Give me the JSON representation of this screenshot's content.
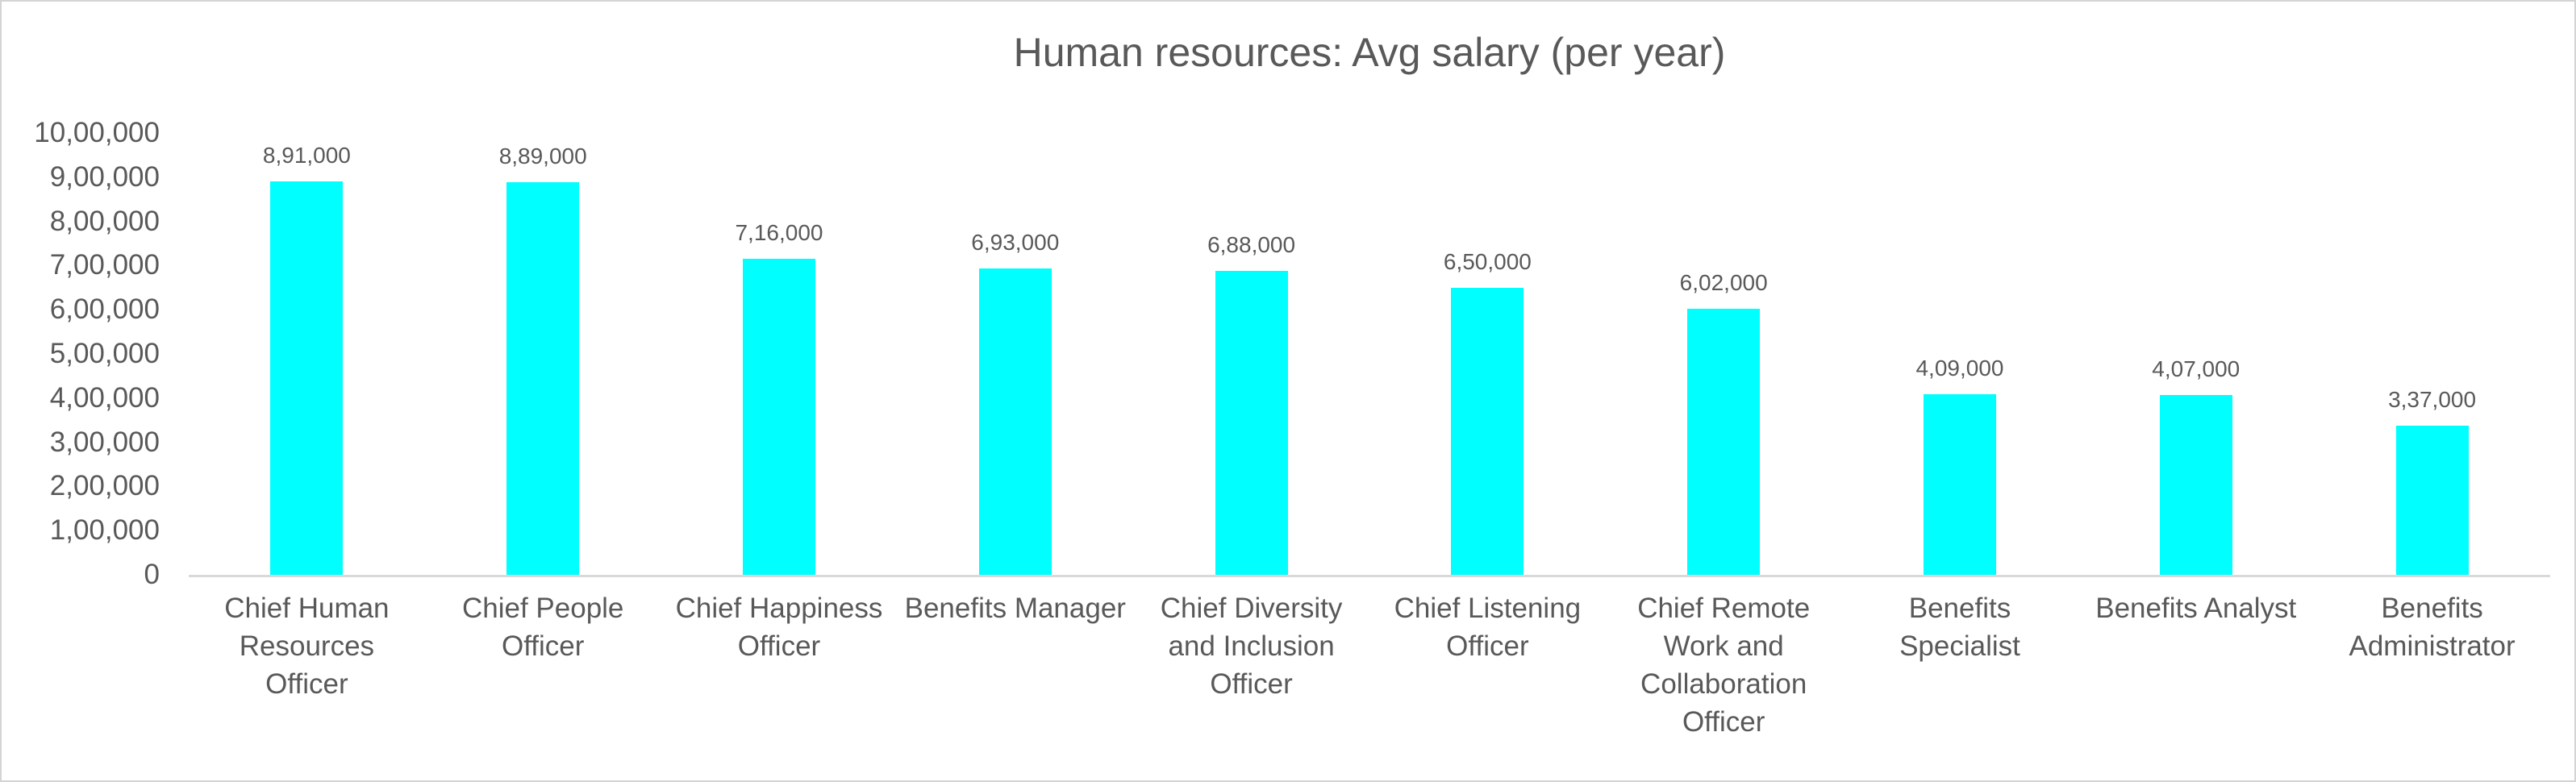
{
  "chart_data": {
    "type": "bar",
    "title": "Human resources: Avg salary (per year)",
    "categories": [
      "Chief Human Resources Officer",
      "Chief People Officer",
      "Chief Happiness Officer",
      "Benefits Manager",
      "Chief Diversity and Inclusion Officer",
      "Chief Listening Officer",
      "Chief Remote Work and Collaboration Officer",
      "Benefits Specialist",
      "Benefits Analyst",
      "Benefits Administrator"
    ],
    "category_lines": [
      [
        "Chief Human",
        "Resources",
        "Officer"
      ],
      [
        "Chief People",
        "Officer"
      ],
      [
        "Chief Happiness",
        "Officer"
      ],
      [
        "Benefits Manager"
      ],
      [
        "Chief Diversity",
        "and Inclusion",
        "Officer"
      ],
      [
        "Chief Listening",
        "Officer"
      ],
      [
        "Chief Remote",
        "Work and",
        "Collaboration",
        "Officer"
      ],
      [
        "Benefits",
        "Specialist"
      ],
      [
        "Benefits Analyst"
      ],
      [
        "Benefits",
        "Administrator"
      ]
    ],
    "values": [
      891000,
      889000,
      716000,
      693000,
      688000,
      650000,
      602000,
      409000,
      407000,
      337000
    ],
    "data_labels": [
      "8,91,000",
      "8,89,000",
      "7,16,000",
      "6,93,000",
      "6,88,000",
      "6,50,000",
      "6,02,000",
      "4,09,000",
      "4,07,000",
      "3,37,000"
    ],
    "xlabel": "",
    "ylabel": "",
    "ylim": [
      0,
      1000000
    ],
    "y_tick_step": 100000,
    "y_ticks": [
      "10,00,000",
      "9,00,000",
      "8,00,000",
      "7,00,000",
      "6,00,000",
      "5,00,000",
      "4,00,000",
      "3,00,000",
      "2,00,000",
      "1,00,000",
      "0"
    ],
    "number_format": "indian-lakh",
    "grid": false,
    "legend": false,
    "bar_color": "#00FFFF",
    "text_color": "#595959",
    "axis_line_color": "#D9D9D9"
  }
}
